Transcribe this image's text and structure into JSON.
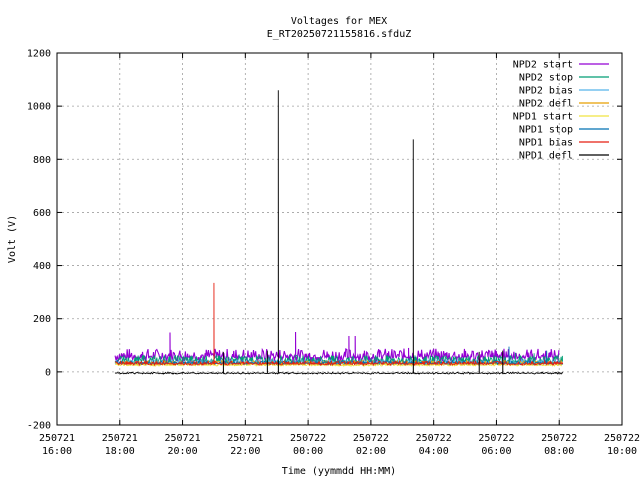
{
  "chart_data": {
    "type": "line",
    "title": "Voltages for MEX",
    "subtitle": "E_RT20250721155816.sfduZ",
    "xlabel": "Time (yymmdd HH:MM)",
    "ylabel": "Volt (V)",
    "ylim": [
      -200,
      1200
    ],
    "xlim": [
      16,
      34
    ],
    "yticks": [
      {
        "value": -200,
        "label": "-200"
      },
      {
        "value": 0,
        "label": "0"
      },
      {
        "value": 200,
        "label": "200"
      },
      {
        "value": 400,
        "label": "400"
      },
      {
        "value": 600,
        "label": "600"
      },
      {
        "value": 800,
        "label": "800"
      },
      {
        "value": 1000,
        "label": "1000"
      },
      {
        "value": 1200,
        "label": "1200"
      }
    ],
    "xticks": [
      {
        "value": 16,
        "date": "250721",
        "time": "16:00"
      },
      {
        "value": 18,
        "date": "250721",
        "time": "18:00"
      },
      {
        "value": 20,
        "date": "250721",
        "time": "20:00"
      },
      {
        "value": 22,
        "date": "250721",
        "time": "22:00"
      },
      {
        "value": 24,
        "date": "250722",
        "time": "00:00"
      },
      {
        "value": 26,
        "date": "250722",
        "time": "02:00"
      },
      {
        "value": 28,
        "date": "250722",
        "time": "04:00"
      },
      {
        "value": 30,
        "date": "250722",
        "time": "06:00"
      },
      {
        "value": 32,
        "date": "250722",
        "time": "08:00"
      },
      {
        "value": 34,
        "date": "250722",
        "time": "10:00"
      }
    ],
    "grid": true,
    "legend_position": "top-right",
    "series": [
      {
        "name": "NPD2 start",
        "color": "#9400d3",
        "base": 55,
        "band": [
          35,
          88
        ],
        "spikes": [
          [
            19.6,
            148
          ],
          [
            23.6,
            150
          ],
          [
            25.3,
            135
          ],
          [
            25.5,
            135
          ],
          [
            27.2,
            90
          ]
        ],
        "end": 32.0
      },
      {
        "name": "NPD2 stop",
        "color": "#009e73",
        "base": 40,
        "band": [
          30,
          62
        ],
        "spikes": [
          [
            30.6,
            72
          ],
          [
            31.2,
            70
          ],
          [
            32.1,
            60
          ]
        ],
        "end": 32.1
      },
      {
        "name": "NPD2 bias",
        "color": "#56b4e9",
        "base": 33,
        "band": [
          28,
          45
        ],
        "spikes": [],
        "end": 32.1
      },
      {
        "name": "NPD2 defl",
        "color": "#e69f00",
        "base": 28,
        "band": [
          25,
          42
        ],
        "spikes": [
          [
            19.4,
            45
          ]
        ],
        "end": 32.1
      },
      {
        "name": "NPD1 start",
        "color": "#f0e442",
        "base": 25,
        "band": [
          22,
          32
        ],
        "spikes": [],
        "end": 32.1
      },
      {
        "name": "NPD1 stop",
        "color": "#0072b2",
        "base": 32,
        "band": [
          28,
          42
        ],
        "spikes": [
          [
            30.4,
            95
          ],
          [
            31.6,
            80
          ]
        ],
        "end": 32.1
      },
      {
        "name": "NPD1 bias",
        "color": "#e51e10",
        "base": 30,
        "band": [
          25,
          40
        ],
        "spikes": [
          [
            21.0,
            335
          ]
        ],
        "end": 32.1
      },
      {
        "name": "NPD1 defl",
        "color": "#000000",
        "base": -5,
        "band": [
          -8,
          -2
        ],
        "spikes": [
          [
            21.3,
            75
          ],
          [
            22.7,
            80
          ],
          [
            23.05,
            1060
          ],
          [
            27.35,
            875
          ],
          [
            29.45,
            75
          ],
          [
            30.2,
            80
          ]
        ],
        "end": 32.1
      }
    ]
  }
}
